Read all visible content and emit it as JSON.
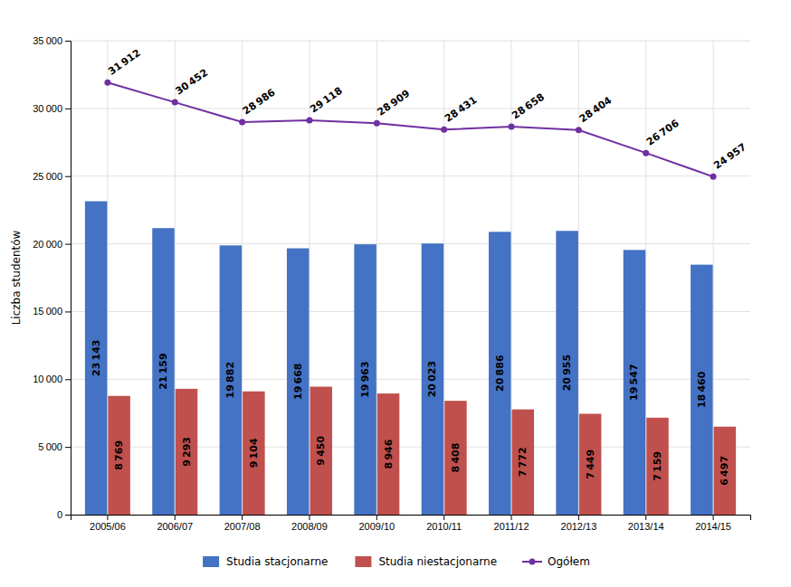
{
  "chart_data": {
    "type": "bar",
    "ylabel": "Liczba studentów",
    "categories": [
      "2005/06",
      "2006/07",
      "2007/08",
      "2008/09",
      "2009/10",
      "2010/11",
      "2011/12",
      "2012/13",
      "2013/14",
      "2014/15"
    ],
    "series": [
      {
        "name": "Studia stacjonarne",
        "color": "#4472C4",
        "values": [
          23143,
          21159,
          19882,
          19668,
          19963,
          20023,
          20886,
          20955,
          19547,
          18460
        ],
        "value_labels": [
          "23 143",
          "21 159",
          "19 882",
          "19 668",
          "19 963",
          "20 023",
          "20 886",
          "20 955",
          "19 547",
          "18 460"
        ]
      },
      {
        "name": "Studia niestacjonarne",
        "color": "#C0504D",
        "values": [
          8769,
          9293,
          9104,
          9450,
          8946,
          8408,
          7772,
          7449,
          7159,
          6497
        ],
        "value_labels": [
          "8 769",
          "9 293",
          "9 104",
          "9 450",
          "8 946",
          "8 408",
          "7 772",
          "7 449",
          "7 159",
          "6 497"
        ]
      },
      {
        "name": "Ogółem",
        "type": "line",
        "color": "#7030A0",
        "marker": "circle",
        "values": [
          31912,
          30452,
          28986,
          29118,
          28909,
          28431,
          28658,
          28404,
          26706,
          24957
        ],
        "value_labels": [
          "31 912",
          "30 452",
          "28 986",
          "29 118",
          "28 909",
          "28 431",
          "28 658",
          "28 404",
          "26 706",
          "24 957"
        ]
      }
    ],
    "ylim": [
      0,
      35000
    ],
    "yticks": [
      0,
      {
        "value": 5000,
        "label": "5 000"
      },
      {
        "value": 10000,
        "label": "10 000"
      },
      {
        "value": 15000,
        "label": "15 000"
      },
      {
        "value": 20000,
        "label": "20 000"
      },
      {
        "value": 25000,
        "label": "25 000"
      },
      {
        "value": 30000,
        "label": "30 000"
      },
      {
        "value": 35000,
        "label": "35 000"
      }
    ],
    "grid": true,
    "legend": "bottom",
    "data_labels": true
  }
}
